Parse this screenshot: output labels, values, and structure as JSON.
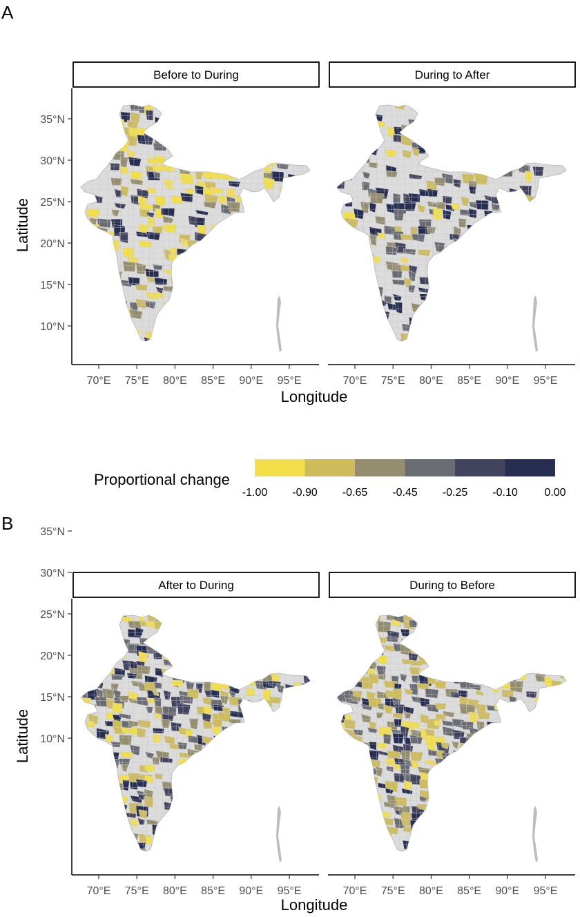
{
  "panels": [
    {
      "label": "A",
      "facets": [
        {
          "title": "Before to During"
        },
        {
          "title": "During to After"
        }
      ]
    },
    {
      "label": "B",
      "facets": [
        {
          "title": "After to During"
        },
        {
          "title": "During to Before"
        }
      ]
    }
  ],
  "axes": {
    "x_title": "Longitude",
    "y_title": "Latitude",
    "x_ticks": [
      "70°E",
      "75°E",
      "80°E",
      "85°E",
      "90°E",
      "95°E"
    ],
    "y_ticks": [
      "35°N",
      "30°N",
      "25°N",
      "20°N",
      "15°N",
      "10°N"
    ]
  },
  "legend": {
    "title": "Proportional change",
    "breaks": [
      "-1.00",
      "-0.90",
      "-0.65",
      "-0.45",
      "-0.25",
      "-0.10",
      "0.00"
    ],
    "colors": [
      "#f3df4a",
      "#cdbb5c",
      "#948d6e",
      "#6a6c74",
      "#42445f",
      "#262f52"
    ],
    "no_data_color": "#dcdcdc"
  }
}
